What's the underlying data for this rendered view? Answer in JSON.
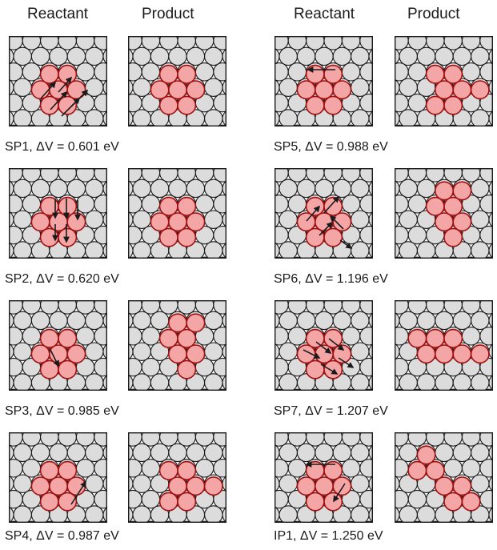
{
  "headers": {
    "left_reactant": "Reactant",
    "left_product": "Product",
    "right_reactant": "Reactant",
    "right_product": "Product"
  },
  "colors": {
    "substrate": "#dcdcdc",
    "adatom": "#f4a6a6",
    "adatom_stroke": "#a01010",
    "outline": "#1a1a1a"
  },
  "rows": [
    {
      "label": "SP1",
      "dv": "ΔV = 0.601 eV"
    },
    {
      "label": "SP2",
      "dv": "ΔV = 0.620 eV"
    },
    {
      "label": "SP3",
      "dv": "ΔV = 0.985 eV"
    },
    {
      "label": "SP4",
      "dv": "ΔV = 0.987 eV"
    },
    {
      "label": "SP5",
      "dv": "ΔV = 0.988 eV"
    },
    {
      "label": "SP6",
      "dv": "ΔV = 1.196 eV"
    },
    {
      "label": "SP7",
      "dv": "ΔV = 1.207 eV"
    },
    {
      "label": "IP1",
      "dv": "ΔV = 1.250 eV"
    }
  ]
}
